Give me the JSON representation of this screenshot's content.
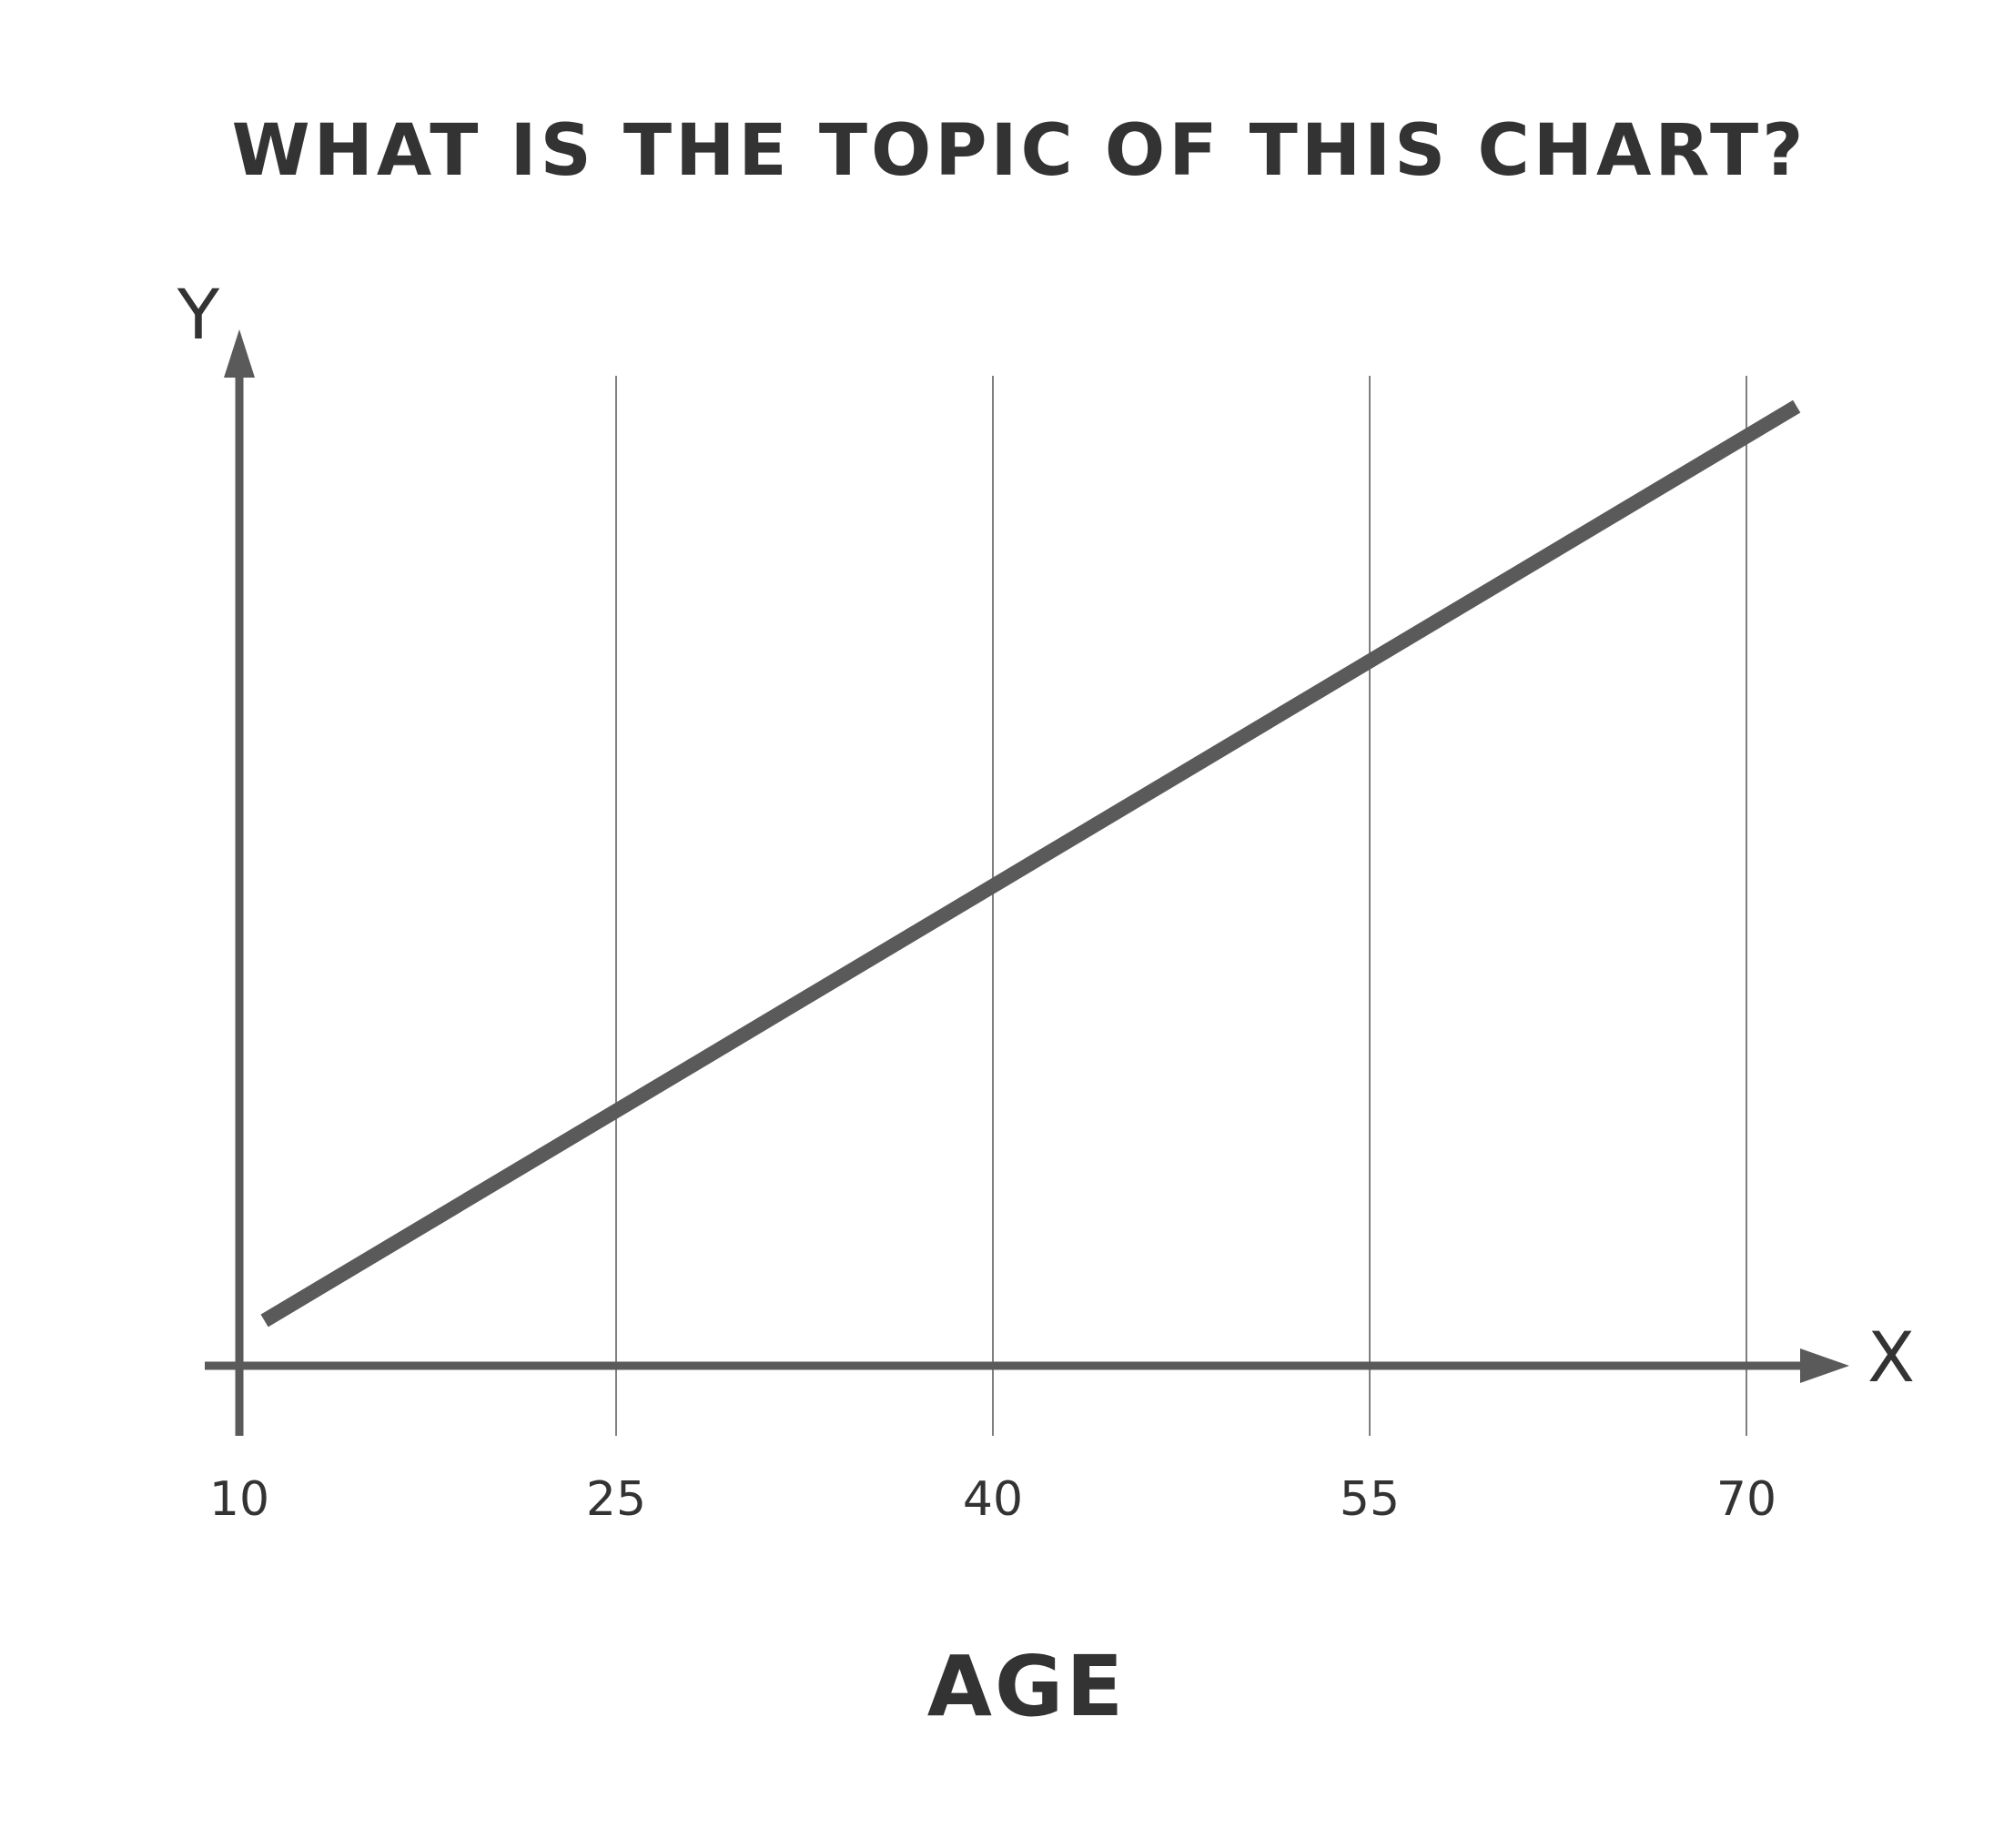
{
  "chart_data": {
    "type": "line",
    "title": "WHAT IS THE TOPIC OF THIS CHART?",
    "xlabel": "AGE",
    "ylabel": "",
    "x_axis_letter": "X",
    "y_axis_letter": "Y",
    "x": [
      11,
      72
    ],
    "series": [
      {
        "values": [
          1.0,
          21.3
        ]
      }
    ],
    "xlim": [
      10,
      72.5
    ],
    "ylim": [
      0,
      22
    ],
    "x_ticks": [
      10,
      25,
      40,
      55,
      70
    ],
    "x_tick_labels": [
      "10",
      "25",
      "40",
      "55",
      "70"
    ],
    "grid": "vertical only",
    "legend": "none",
    "colors": {
      "line": "#5a5a5a",
      "axes": "#5a5a5a",
      "grid": "#555555",
      "text": "#333333"
    }
  }
}
